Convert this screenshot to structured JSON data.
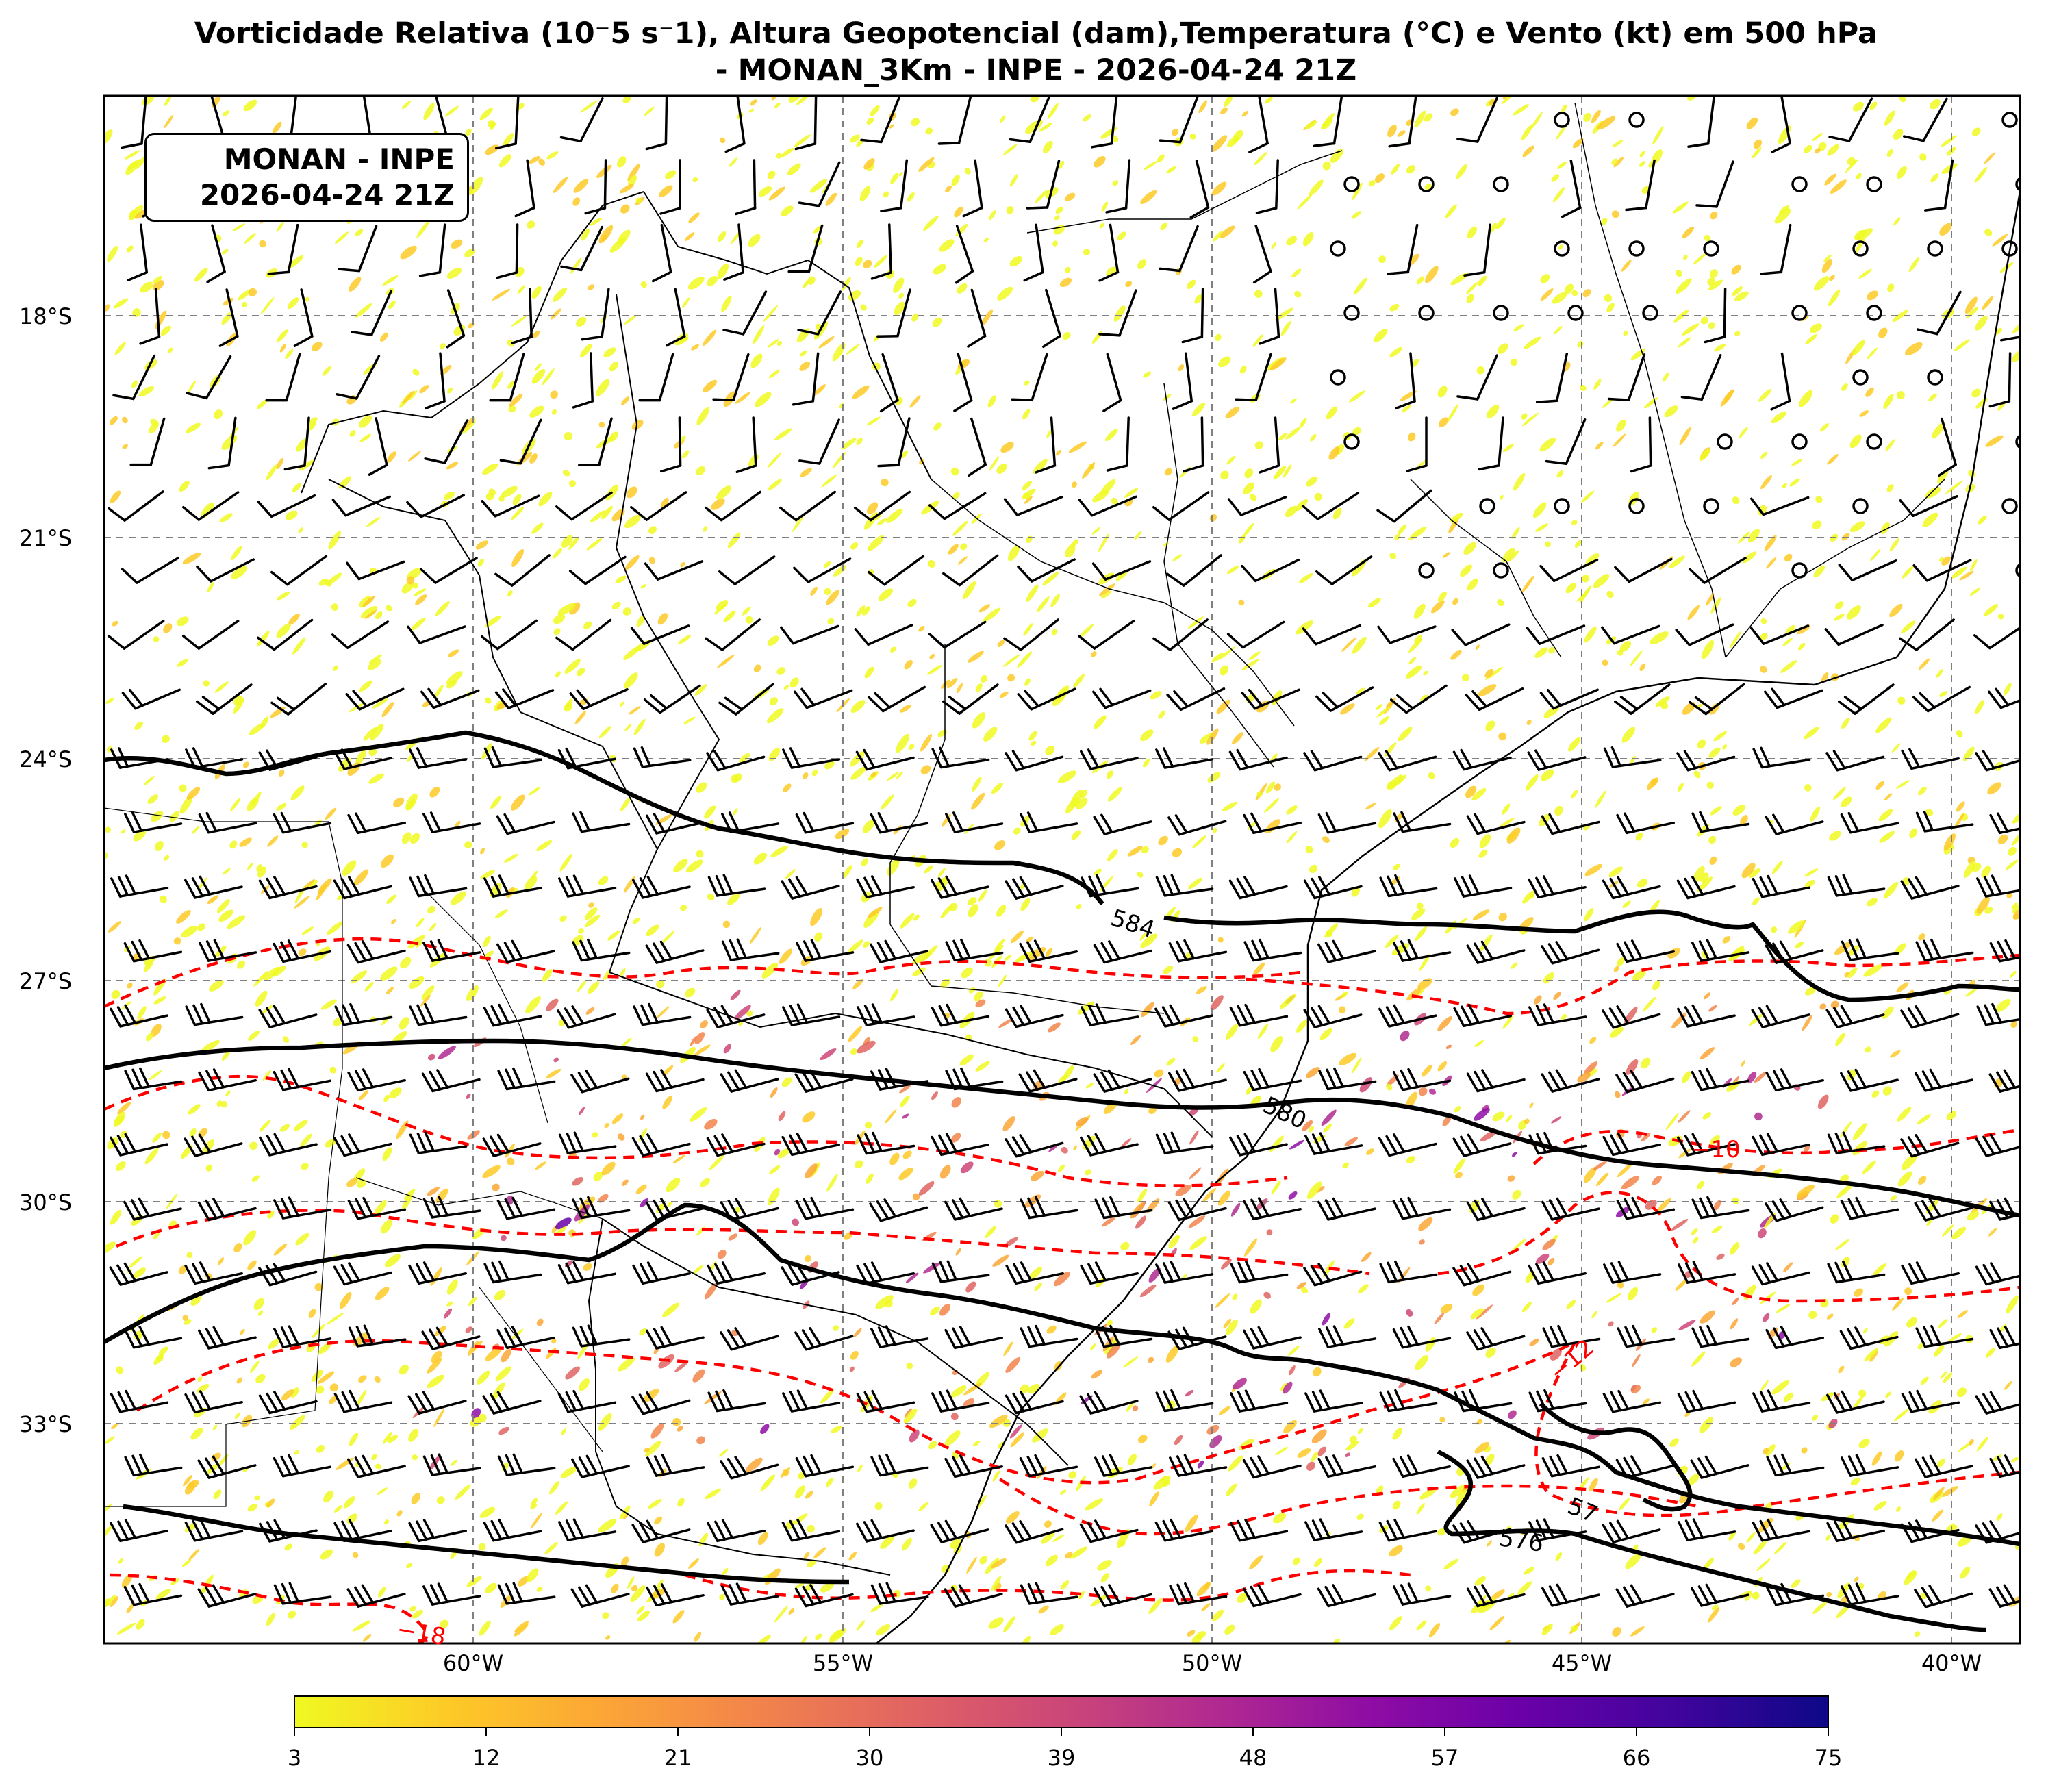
{
  "title": {
    "line1": "Vorticidade Relativa (10⁻5 s⁻1), Altura Geopotencial (dam),Temperatura (°C) e Vento (kt) em 500 hPa",
    "line2": "- MONAN_3Km - INPE - 2026-04-24 21Z"
  },
  "badge": {
    "line1": "MONAN - INPE",
    "line2": "2026-04-24 21Z"
  },
  "lat_labels": [
    "18°S",
    "21°S",
    "24°S",
    "27°S",
    "30°S",
    "33°S"
  ],
  "lon_labels": [
    "60°W",
    "55°W",
    "50°W",
    "45°W",
    "40°W"
  ],
  "colorbar": {
    "ticks": [
      "3",
      "12",
      "21",
      "30",
      "39",
      "48",
      "57",
      "66",
      "75"
    ],
    "colors": [
      "#f0f921",
      "#fdca26",
      "#fca636",
      "#f2844b",
      "#e16462",
      "#cc4778",
      "#b12a90",
      "#8f0da4",
      "#6a00a8",
      "#41049d",
      "#0d0887"
    ]
  },
  "contour_labels": {
    "height": [
      "584",
      "580",
      "576",
      "57"
    ],
    "temperature": [
      "−10",
      "−12",
      "−18"
    ]
  },
  "colors": {
    "height": "#000000",
    "temperature": "#ff0000",
    "grid": "#808080"
  }
}
